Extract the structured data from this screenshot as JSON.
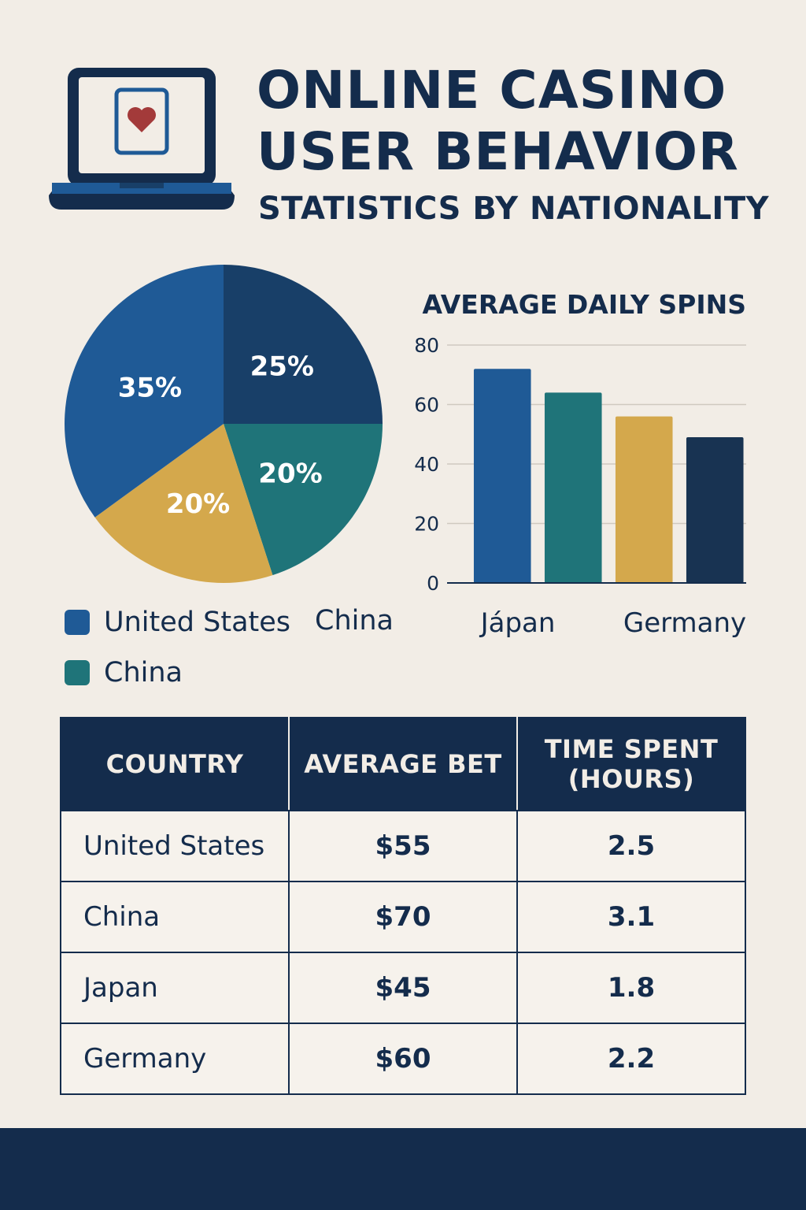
{
  "header": {
    "title_line1": "ONLINE CASINO",
    "title_line2": "USER BEHAVIOR",
    "subtitle": "STATISTICS BY NATIONALITY"
  },
  "colors": {
    "navy": "#142c4c",
    "blue": "#1f5a96",
    "dark_blue": "#183f68",
    "teal": "#1f7479",
    "gold": "#d4a84c",
    "background": "#f2ede6",
    "heart": "#a33a3a"
  },
  "icons": {
    "laptop": "laptop-icon",
    "heart_card": "heart-card-icon"
  },
  "legend": {
    "items": [
      {
        "label": "United States",
        "color": "#1f5a96"
      },
      {
        "label": "China",
        "color": "#1f7479"
      }
    ],
    "loose_label": "China"
  },
  "chart_data": [
    {
      "type": "pie",
      "slices": [
        {
          "label": "25%",
          "value": 25,
          "color": "#183f68"
        },
        {
          "label": "20%",
          "value": 20,
          "color": "#1f7479"
        },
        {
          "label": "20%",
          "value": 20,
          "color": "#d4a84c"
        },
        {
          "label": "35%",
          "value": 35,
          "color": "#1f5a96"
        }
      ]
    },
    {
      "type": "bar",
      "title": "AVERAGE DAILY SPINS",
      "categories": [
        "",
        "",
        "",
        ""
      ],
      "values": [
        72,
        64,
        56,
        49
      ],
      "colors": [
        "#1f5a96",
        "#1f7479",
        "#d4a84c",
        "#183352"
      ],
      "ylim": [
        0,
        80
      ],
      "yticks": [
        0,
        20,
        40,
        60,
        80
      ],
      "grid": true,
      "x_labels": [
        "Jápan",
        "Germany"
      ]
    }
  ],
  "table": {
    "headers": [
      "COUNTRY",
      "AVERAGE BET",
      "TIME SPENT (HOURS)"
    ],
    "rows": [
      [
        "United States",
        "$55",
        "2.5"
      ],
      [
        "China",
        "$70",
        "3.1"
      ],
      [
        "Japan",
        "$45",
        "1.8"
      ],
      [
        "Germany",
        "$60",
        "2.2"
      ]
    ]
  }
}
